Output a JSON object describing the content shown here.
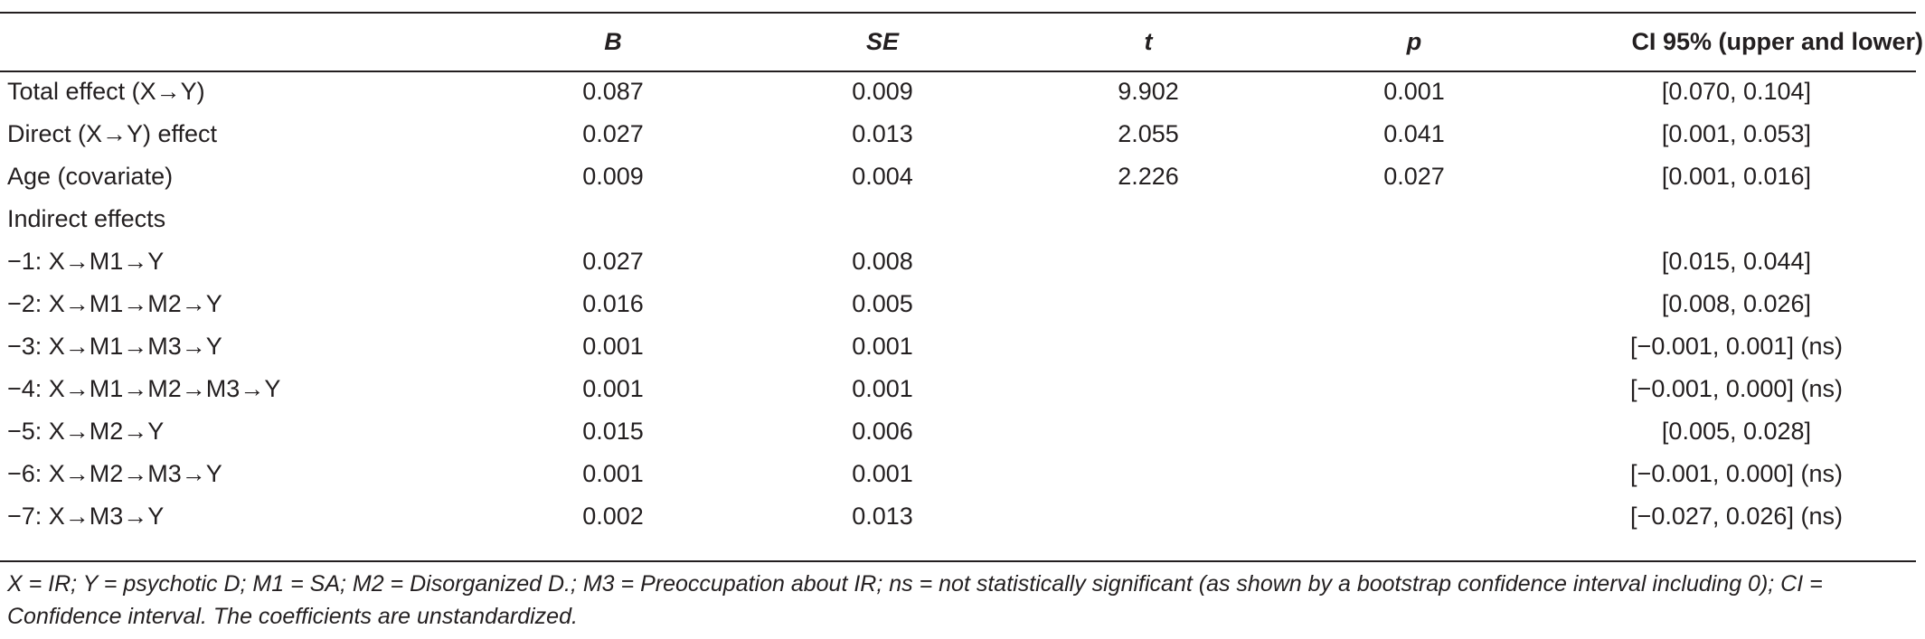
{
  "table": {
    "headers": {
      "label": "",
      "b": "B",
      "se": "SE",
      "t": "t",
      "p": "p",
      "ci": "CI 95% (upper and lower)"
    },
    "rows": [
      {
        "label": "Total effect (X→Y)",
        "b": "0.087",
        "se": "0.009",
        "t": "9.902",
        "p": "0.001",
        "ci": "[0.070, 0.104]"
      },
      {
        "label": "Direct (X→Y) effect",
        "b": "0.027",
        "se": "0.013",
        "t": "2.055",
        "p": "0.041",
        "ci": "[0.001, 0.053]"
      },
      {
        "label": "Age (covariate)",
        "b": "0.009",
        "se": "0.004",
        "t": "2.226",
        "p": "0.027",
        "ci": "[0.001, 0.016]"
      },
      {
        "label": "Indirect effects",
        "b": "",
        "se": "",
        "t": "",
        "p": "",
        "ci": ""
      },
      {
        "label": "−1: X→M1→Y",
        "b": "0.027",
        "se": "0.008",
        "t": "",
        "p": "",
        "ci": "[0.015, 0.044]"
      },
      {
        "label": "−2: X→M1→M2→Y",
        "b": "0.016",
        "se": "0.005",
        "t": "",
        "p": "",
        "ci": "[0.008, 0.026]"
      },
      {
        "label": "−3: X→M1→M3→Y",
        "b": "0.001",
        "se": "0.001",
        "t": "",
        "p": "",
        "ci": "[−0.001, 0.001] (ns)"
      },
      {
        "label": "−4: X→M1→M2→M3→Y",
        "b": "0.001",
        "se": "0.001",
        "t": "",
        "p": "",
        "ci": "[−0.001, 0.000] (ns)"
      },
      {
        "label": "−5: X→M2→Y",
        "b": "0.015",
        "se": "0.006",
        "t": "",
        "p": "",
        "ci": "[0.005, 0.028]"
      },
      {
        "label": "−6: X→M2→M3→Y",
        "b": "0.001",
        "se": "0.001",
        "t": "",
        "p": "",
        "ci": "[−0.001, 0.000] (ns)"
      },
      {
        "label": "−7: X→M3→Y",
        "b": "0.002",
        "se": "0.013",
        "t": "",
        "p": "",
        "ci": "[−0.027, 0.026] (ns)"
      }
    ]
  },
  "footnote": "X = IR; Y = psychotic D; M1 = SA; M2 = Disorganized D.; M3 = Preoccupation about IR; ns = not statistically significant (as shown by a bootstrap confidence interval including 0); CI = Confidence interval. The coefficients are unstandardized."
}
